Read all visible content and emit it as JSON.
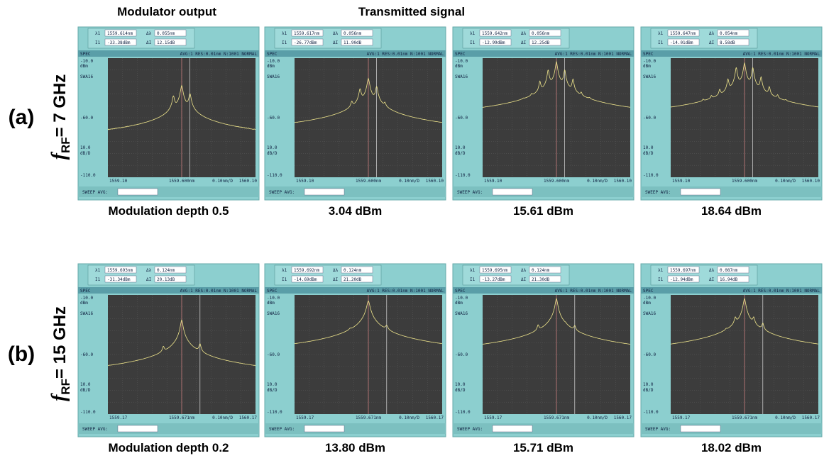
{
  "headers": {
    "modulator": "Modulator output",
    "transmitted": "Transmitted signal"
  },
  "readout_labels": {
    "lambda1": "λ1",
    "dlambda": "Δλ",
    "level1": "I1",
    "dlevel": "ΔI"
  },
  "screen": {
    "spec": "SPEC",
    "status": "AVG:1  RES:0.01nm N:1001   NORMAL",
    "ref": "-10.0",
    "ref_unit": "dBm",
    "sens": "SWA16",
    "mid": "-60.0",
    "scale": "10.0",
    "scale_unit": "dB/D",
    "bottom": "-110.0",
    "span": "0.10nm/D",
    "sweep": "SWEEP AVG:"
  },
  "rows": [
    {
      "label": "(a)",
      "f": "f",
      "sub": "RF",
      "freq": "= 7 GHz",
      "x_start": "1559.10",
      "x_center": "1559.600nm",
      "x_end": "1560.10",
      "panels": [
        {
          "lambda1": "1559.614nm",
          "dlambda": "0.055nm",
          "level1": "-33.38dBm",
          "dlevel": "12.15dB",
          "caption": "Modulation depth 0.5"
        },
        {
          "lambda1": "1559.617nm",
          "dlambda": "0.056nm",
          "level1": "-26.77dBm",
          "dlevel": "11.90dB",
          "caption": "3.04 dBm"
        },
        {
          "lambda1": "1559.642nm",
          "dlambda": "0.056nm",
          "level1": "-12.99dBm",
          "dlevel": "12.25dB",
          "caption": "15.61 dBm"
        },
        {
          "lambda1": "1559.647nm",
          "dlambda": "0.054nm",
          "level1": "-14.01dBm",
          "dlevel": "8.58dB",
          "caption": "18.64 dBm"
        }
      ]
    },
    {
      "label": "(b)",
      "f": "f",
      "sub": "RF",
      "freq": "= 15 GHz",
      "x_start": "1559.17",
      "x_center": "1559.671nm",
      "x_end": "1560.17",
      "panels": [
        {
          "lambda1": "1559.693nm",
          "dlambda": "0.124nm",
          "level1": "-31.34dBm",
          "dlevel": "20.13dB",
          "caption": "Modulation depth 0.2"
        },
        {
          "lambda1": "1559.692nm",
          "dlambda": "0.124nm",
          "level1": "-14.69dBm",
          "dlevel": "21.20dB",
          "caption": "13.80 dBm"
        },
        {
          "lambda1": "1559.695nm",
          "dlambda": "0.124nm",
          "level1": "-13.27dBm",
          "dlevel": "21.30dB",
          "caption": "15.71 dBm"
        },
        {
          "lambda1": "1559.697nm",
          "dlambda": "0.087nm",
          "level1": "-12.94dBm",
          "dlevel": "16.94dB",
          "caption": "18.02 dBm"
        }
      ]
    }
  ]
}
